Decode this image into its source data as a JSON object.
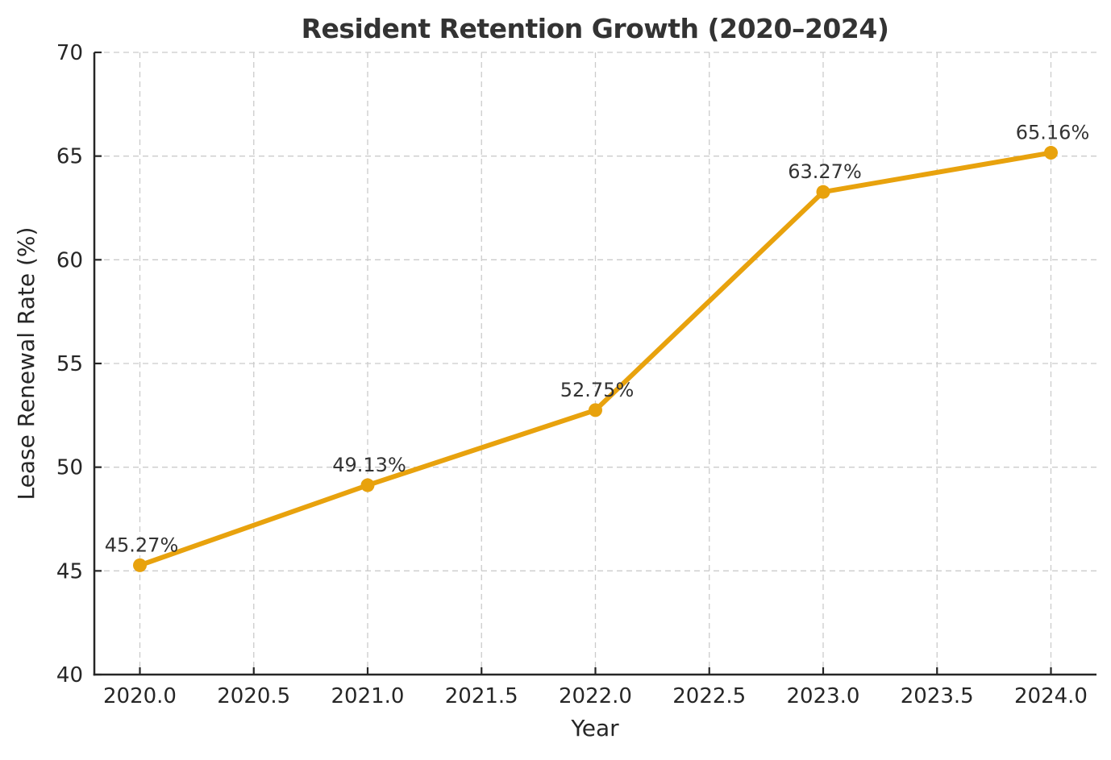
{
  "chart_data": {
    "type": "line",
    "title": "Resident Retention Growth (2020–2024)",
    "xlabel": "Year",
    "ylabel": "Lease Renewal Rate (%)",
    "x": [
      2020,
      2021,
      2022,
      2023,
      2024
    ],
    "y": [
      45.27,
      49.13,
      52.75,
      63.27,
      65.16
    ],
    "point_labels": [
      "45.27%",
      "49.13%",
      "52.75%",
      "63.27%",
      "65.16%"
    ],
    "xlim": [
      2019.8,
      2024.2
    ],
    "ylim": [
      40,
      70
    ],
    "xticks": [
      2020.0,
      2020.5,
      2021.0,
      2021.5,
      2022.0,
      2022.5,
      2023.0,
      2023.5,
      2024.0
    ],
    "xtick_labels": [
      "2020.0",
      "2020.5",
      "2021.0",
      "2021.5",
      "2022.0",
      "2022.5",
      "2023.0",
      "2023.5",
      "2024.0"
    ],
    "yticks": [
      40,
      45,
      50,
      55,
      60,
      65,
      70
    ],
    "ytick_labels": [
      "40",
      "45",
      "50",
      "55",
      "60",
      "65",
      "70"
    ],
    "grid": true,
    "grid_style": "dashed",
    "legend_position": "none",
    "line_color": "#E8A20D",
    "marker_color": "#E8A20D",
    "grid_color": "#CBCBCB",
    "axis_color": "#262626",
    "title_color": "#333333",
    "label_color": "#333333"
  }
}
